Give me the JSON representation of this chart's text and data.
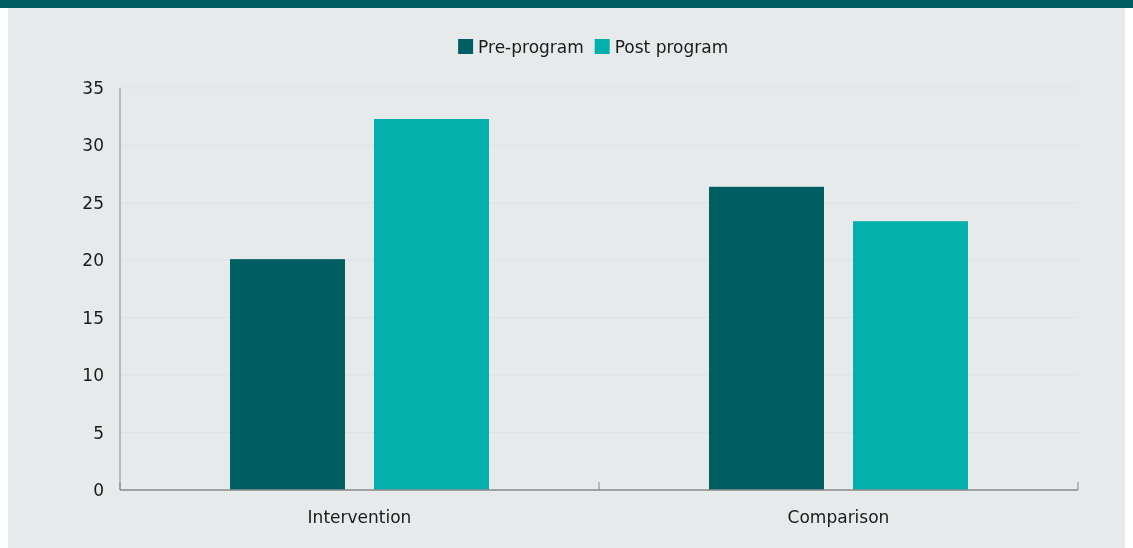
{
  "chart_data": {
    "type": "bar",
    "categories": [
      "Intervention",
      "Comparison"
    ],
    "series": [
      {
        "name": "Pre-program",
        "color": "#005f62",
        "values": [
          20.1,
          26.4
        ]
      },
      {
        "name": "Post program",
        "color": "#05afab",
        "values": [
          32.3,
          23.4
        ]
      }
    ],
    "ylim": [
      0,
      35
    ],
    "yticks": [
      0,
      5,
      10,
      15,
      20,
      25,
      30,
      35
    ],
    "grid": "y",
    "legend": "top"
  }
}
